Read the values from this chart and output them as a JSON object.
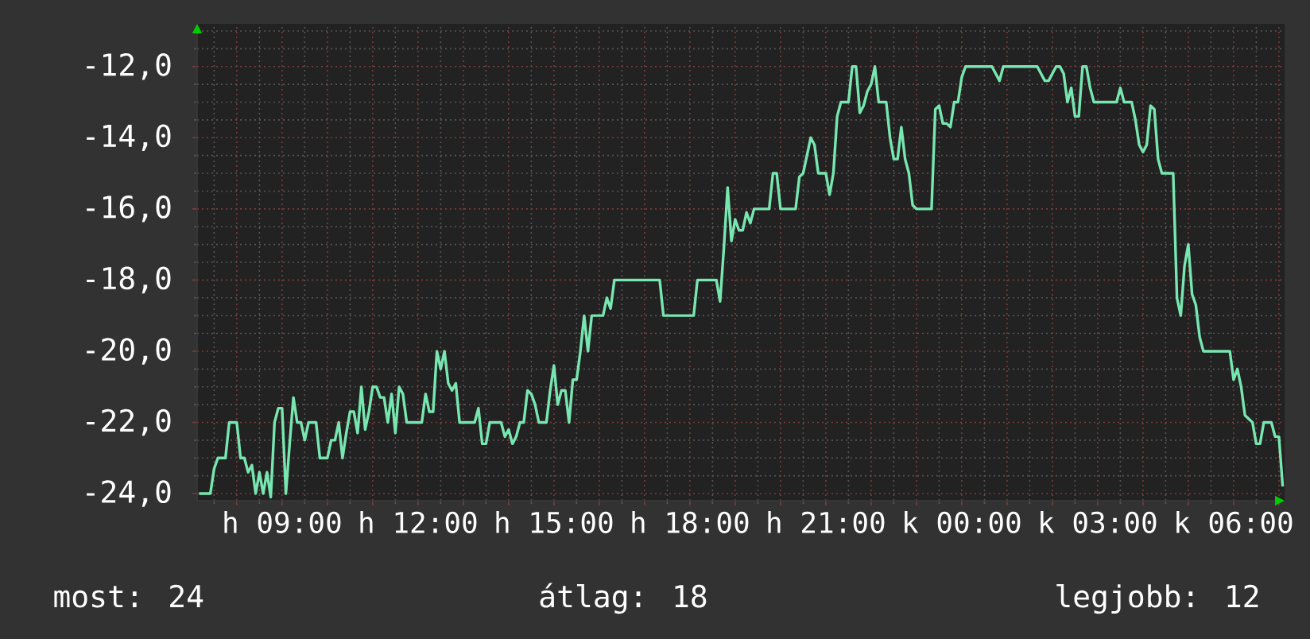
{
  "chart_data": {
    "type": "line",
    "categories": [
      null,
      null,
      null,
      null,
      null,
      null,
      null,
      null,
      null,
      null,
      null,
      null,
      null,
      null,
      null,
      null,
      null,
      null,
      null,
      null,
      null,
      null,
      "h 09:00",
      null,
      null,
      null,
      null,
      null,
      null,
      null,
      null,
      null,
      null,
      null,
      null,
      null,
      null,
      null,
      null,
      null,
      null,
      null,
      null,
      null,
      null,
      null,
      null,
      null,
      null,
      null,
      null,
      null,
      null,
      null,
      null,
      null,
      null,
      null,
      "h 12:00",
      null,
      null,
      null,
      null,
      null,
      null,
      null,
      null,
      null,
      null,
      null,
      null,
      null,
      null,
      null,
      null,
      null,
      null,
      null,
      null,
      null,
      null,
      null,
      null,
      null,
      null,
      null,
      null,
      null,
      null,
      null,
      null,
      null,
      null,
      null,
      "h 15:00",
      null,
      null,
      null,
      null,
      null,
      null,
      null,
      null,
      null,
      null,
      null,
      null,
      null,
      null,
      null,
      null,
      null,
      null,
      null,
      null,
      null,
      null,
      null,
      null,
      null,
      null,
      null,
      null,
      null,
      null,
      null,
      null,
      null,
      null,
      null,
      "h 18:00",
      null,
      null,
      null,
      null,
      null,
      null,
      null,
      null,
      null,
      null,
      null,
      null,
      null,
      null,
      null,
      null,
      null,
      null,
      null,
      null,
      null,
      null,
      null,
      null,
      null,
      null,
      null,
      null,
      null,
      null,
      null,
      null,
      null,
      null,
      null,
      "h 21:00",
      null,
      null,
      null,
      null,
      null,
      null,
      null,
      null,
      null,
      null,
      null,
      null,
      null,
      null,
      null,
      null,
      null,
      null,
      null,
      null,
      null,
      null,
      null,
      null,
      null,
      null,
      null,
      null,
      null,
      null,
      null,
      null,
      null,
      null,
      null,
      "k 00:00",
      null,
      null,
      null,
      null,
      null,
      null,
      null,
      null,
      null,
      null,
      null,
      null,
      null,
      null,
      null,
      null,
      null,
      null,
      null,
      null,
      null,
      null,
      null,
      null,
      null,
      null,
      null,
      null,
      null,
      null,
      null,
      null,
      null,
      null,
      null,
      "k 03:00",
      null,
      null,
      null,
      null,
      null,
      null,
      null,
      null,
      null,
      null,
      null,
      null,
      null,
      null,
      null,
      null,
      null,
      null,
      null,
      null,
      null,
      null,
      null,
      null,
      null,
      null,
      null,
      null,
      null,
      null,
      null,
      null,
      null,
      null,
      null,
      "k 06:00",
      null,
      null,
      null,
      null,
      null,
      null,
      null,
      null,
      null,
      null,
      null,
      null,
      null
    ],
    "series": [
      {
        "color": "#78e6b0",
        "values": [
          -24,
          -24,
          -24,
          -24,
          -23.3,
          -23,
          -23,
          -23,
          -22,
          -22,
          -22,
          -23,
          -23,
          -23.4,
          -23.2,
          -24,
          -23.4,
          -24,
          -23.4,
          -24.1,
          -22,
          -21.6,
          -21.6,
          -24,
          -22.6,
          -21.3,
          -22,
          -22,
          -22.5,
          -22,
          -22,
          -22,
          -23,
          -23,
          -23,
          -22.5,
          -22.5,
          -22,
          -23,
          -22.3,
          -21.7,
          -21.7,
          -22.3,
          -21,
          -22.2,
          -21.7,
          -21,
          -21,
          -21.3,
          -21.3,
          -22,
          -21.2,
          -22.3,
          -21,
          -21.2,
          -22,
          -22,
          -22,
          -22,
          -22,
          -21.2,
          -21.7,
          -21.7,
          -20,
          -20.5,
          -20,
          -20.9,
          -21.1,
          -20.9,
          -22,
          -22,
          -22,
          -22,
          -22,
          -21.6,
          -22.6,
          -22.6,
          -22,
          -22,
          -22,
          -22,
          -22.4,
          -22.2,
          -22.6,
          -22.4,
          -22,
          -22,
          -21.1,
          -21.2,
          -21.5,
          -22,
          -22,
          -22,
          -21.1,
          -20.4,
          -21.5,
          -21.1,
          -21.1,
          -22,
          -20.8,
          -20.8,
          -20,
          -19,
          -20,
          -19,
          -19,
          -19,
          -19,
          -18.5,
          -18.8,
          -18,
          -18,
          -18,
          -18,
          -18,
          -18,
          -18,
          -18,
          -18,
          -18,
          -18,
          -18,
          -18,
          -19,
          -19,
          -19,
          -19,
          -19,
          -19,
          -19,
          -19,
          -19,
          -18,
          -18,
          -18,
          -18,
          -18,
          -18,
          -18.6,
          -17.1,
          -15.4,
          -16.9,
          -16.3,
          -16.6,
          -16.6,
          -16.1,
          -16.4,
          -16,
          -16,
          -16,
          -16,
          -16,
          -15,
          -15,
          -16,
          -16,
          -16,
          -16,
          -16,
          -15.1,
          -15,
          -14.5,
          -14,
          -14.2,
          -15,
          -15,
          -15,
          -15.6,
          -15,
          -13.4,
          -13,
          -13,
          -13,
          -12,
          -12,
          -13.3,
          -13.1,
          -12.7,
          -12.5,
          -12,
          -13,
          -13,
          -13,
          -14,
          -14.6,
          -14.6,
          -13.7,
          -14.6,
          -15,
          -15.9,
          -16,
          -16,
          -16,
          -16,
          -16,
          -13.2,
          -13.1,
          -13.6,
          -13.6,
          -13.7,
          -13,
          -13,
          -12.3,
          -12,
          -12,
          -12,
          -12,
          -12,
          -12,
          -12,
          -12,
          -12.2,
          -12.4,
          -12,
          -12,
          -12,
          -12,
          -12,
          -12,
          -12,
          -12,
          -12,
          -12,
          -12.2,
          -12.4,
          -12.4,
          -12.2,
          -12,
          -12,
          -12.2,
          -13,
          -12.6,
          -13.4,
          -13.4,
          -12,
          -12,
          -12.6,
          -13,
          -13,
          -13,
          -13,
          -13,
          -13,
          -13,
          -12.6,
          -13,
          -13,
          -13,
          -13.5,
          -14.2,
          -14.4,
          -14.2,
          -13.1,
          -13.2,
          -14.6,
          -15,
          -15,
          -15,
          -15,
          -18.5,
          -19,
          -17.6,
          -17,
          -18.4,
          -18.7,
          -19.6,
          -20,
          -20,
          -20,
          -20,
          -20,
          -20,
          -20,
          -20,
          -20.8,
          -20.5,
          -21,
          -21.8,
          -21.9,
          -22,
          -22.6,
          -22.6,
          -22,
          -22,
          -22,
          -22.4,
          -22.4,
          -23.8
        ]
      }
    ],
    "ylim": [
      -24.2,
      -10.8
    ],
    "yticks": [
      {
        "value": -24,
        "label": "-24,0"
      },
      {
        "value": -22,
        "label": "-22,0"
      },
      {
        "value": -20,
        "label": "-20,0"
      },
      {
        "value": -18,
        "label": "-18,0"
      },
      {
        "value": -16,
        "label": "-16,0"
      },
      {
        "value": -14,
        "label": "-14,0"
      },
      {
        "value": -12,
        "label": "-12,0"
      }
    ],
    "grid": true,
    "annotations": [
      "most: 24",
      "átlag: 18",
      "legjobb: 12"
    ]
  }
}
